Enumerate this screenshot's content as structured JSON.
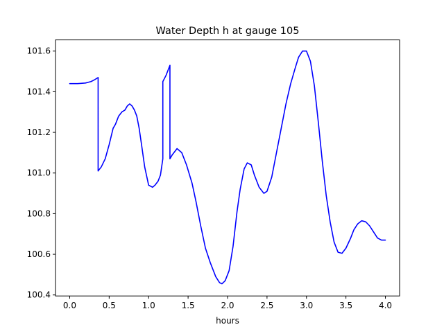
{
  "chart_data": {
    "type": "line",
    "title": "Water Depth h at gauge 105",
    "xlabel": "hours",
    "ylabel": "",
    "xlim": [
      -0.18,
      4.18
    ],
    "ylim": [
      100.395,
      101.655
    ],
    "xticks": [
      "0.0",
      "0.5",
      "1.0",
      "1.5",
      "2.0",
      "2.5",
      "3.0",
      "3.5",
      "4.0"
    ],
    "yticks": [
      "100.4",
      "100.6",
      "100.8",
      "101.0",
      "101.2",
      "101.4",
      "101.6"
    ],
    "grid": false,
    "legend": "none",
    "series": [
      {
        "color": "#0000ff",
        "x": [
          0.0,
          0.1,
          0.2,
          0.27,
          0.32,
          0.36,
          0.36,
          0.4,
          0.45,
          0.5,
          0.55,
          0.58,
          0.62,
          0.66,
          0.7,
          0.73,
          0.76,
          0.79,
          0.82,
          0.85,
          0.88,
          0.91,
          0.95,
          1.0,
          1.05,
          1.08,
          1.12,
          1.15,
          1.18,
          1.18,
          1.22,
          1.27,
          1.27,
          1.3,
          1.36,
          1.42,
          1.48,
          1.55,
          1.6,
          1.66,
          1.72,
          1.78,
          1.85,
          1.9,
          1.93,
          1.97,
          2.02,
          2.07,
          2.12,
          2.16,
          2.21,
          2.25,
          2.3,
          2.34,
          2.4,
          2.46,
          2.5,
          2.56,
          2.62,
          2.68,
          2.74,
          2.8,
          2.86,
          2.9,
          2.95,
          3.0,
          3.05,
          3.1,
          3.15,
          3.2,
          3.25,
          3.3,
          3.35,
          3.4,
          3.45,
          3.5,
          3.56,
          3.6,
          3.65,
          3.7,
          3.75,
          3.8,
          3.85,
          3.9,
          3.95,
          4.0
        ],
        "y": [
          101.44,
          101.44,
          101.443,
          101.45,
          101.46,
          101.47,
          101.01,
          101.03,
          101.07,
          101.14,
          101.22,
          101.24,
          101.28,
          101.3,
          101.31,
          101.33,
          101.34,
          101.33,
          101.31,
          101.28,
          101.22,
          101.14,
          101.03,
          100.94,
          100.93,
          100.94,
          100.96,
          100.99,
          101.07,
          101.45,
          101.48,
          101.53,
          101.07,
          101.09,
          101.12,
          101.1,
          101.04,
          100.95,
          100.86,
          100.74,
          100.63,
          100.56,
          100.49,
          100.46,
          100.455,
          100.47,
          100.52,
          100.64,
          100.81,
          100.92,
          101.02,
          101.05,
          101.04,
          100.99,
          100.93,
          100.9,
          100.91,
          100.98,
          101.1,
          101.22,
          101.34,
          101.44,
          101.52,
          101.57,
          101.6,
          101.6,
          101.55,
          101.43,
          101.25,
          101.06,
          100.89,
          100.76,
          100.66,
          100.61,
          100.605,
          100.63,
          100.68,
          100.72,
          100.75,
          100.765,
          100.76,
          100.74,
          100.71,
          100.68,
          100.67,
          100.67
        ]
      }
    ]
  }
}
